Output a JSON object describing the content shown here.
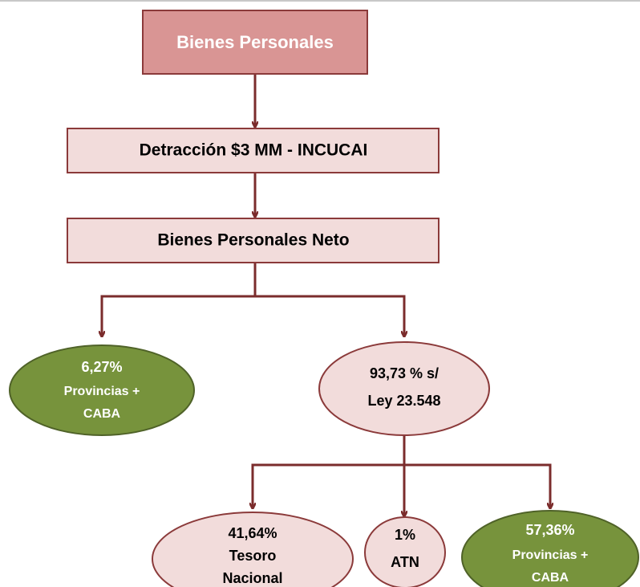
{
  "nodes": [
    {
      "lines": [
        "Bienes Personales"
      ]
    },
    {
      "lines": [
        "Detracción $3 MM - INCUCAI"
      ]
    },
    {
      "lines": [
        "Bienes Personales Neto"
      ]
    },
    {
      "lines": [
        "6,27%",
        "Provincias +",
        "CABA"
      ]
    },
    {
      "lines": [
        "93,73 % s/",
        "Ley 23.548"
      ]
    },
    {
      "lines": [
        "41,64%",
        "Tesoro",
        "Nacional"
      ]
    },
    {
      "lines": [
        "1%",
        "ATN"
      ]
    },
    {
      "lines": [
        "57,36%",
        "Provincias +",
        "CABA"
      ]
    }
  ]
}
